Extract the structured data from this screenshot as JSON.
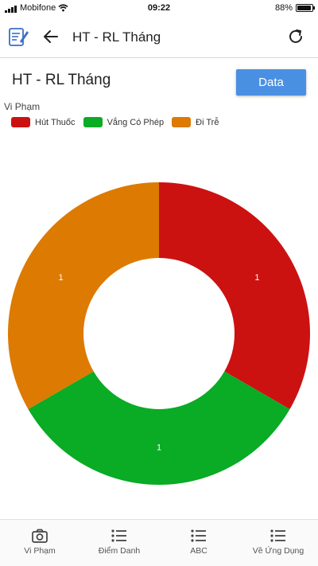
{
  "status_bar": {
    "carrier": "Mobifone",
    "time": "09:22",
    "battery": "88%"
  },
  "app_bar": {
    "title": "HT - RL Tháng",
    "left_icon": "notes-icon",
    "back_icon": "arrow-left-icon",
    "refresh_icon": "refresh-icon"
  },
  "page": {
    "heading": "HT - RL Tháng",
    "data_button": "Data"
  },
  "chart_data": {
    "type": "pie",
    "variant": "donut",
    "dataset_label": "Vi Phạm",
    "legend_position": "top-left",
    "categories": [
      "Hút Thuốc",
      "Vắng Có Phép",
      "Đi Trễ"
    ],
    "values": [
      1,
      1,
      1
    ],
    "colors": [
      "#cc1111",
      "#0aab25",
      "#dd7a02"
    ]
  },
  "bottom_nav": {
    "items": [
      {
        "label": "Vi Phạm",
        "icon": "camera-icon"
      },
      {
        "label": "Điểm Danh",
        "icon": "list-icon"
      },
      {
        "label": "ABC",
        "icon": "list-icon"
      },
      {
        "label": "Về Ứng Dụng",
        "icon": "list-icon"
      }
    ]
  }
}
